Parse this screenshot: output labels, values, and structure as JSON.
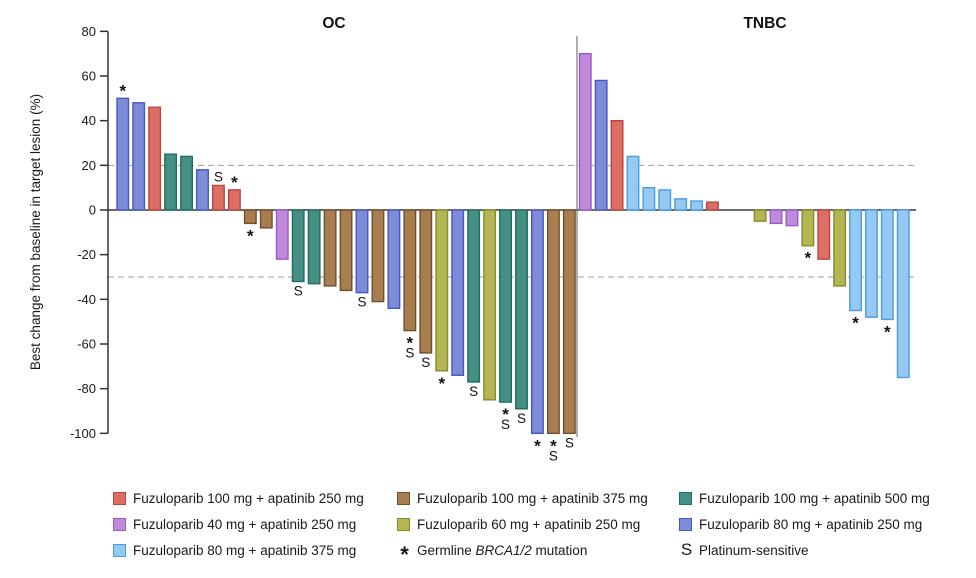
{
  "chart_data": {
    "type": "bar",
    "subtype": "waterfall",
    "ylabel": "Best change from baseline in target lesion (%)",
    "ylim": [
      -100,
      80
    ],
    "yticks": [
      80,
      60,
      40,
      20,
      0,
      -20,
      -40,
      -60,
      -80,
      -100
    ],
    "reference_lines": {
      "upper": 20,
      "lower": -30
    },
    "grid": false,
    "legend_position": "bottom",
    "groups": {
      "f100_250": {
        "label": "Fuzuloparib 100 mg + apatinib 250 mg",
        "fill": "#DC6E66",
        "stroke": "#B8463C"
      },
      "f40_250": {
        "label": "Fuzuloparib 40 mg + apatinib 250 mg",
        "fill": "#C189DC",
        "stroke": "#9B59C6"
      },
      "f80_375": {
        "label": "Fuzuloparib 80 mg + apatinib 375 mg",
        "fill": "#94CAF1",
        "stroke": "#4D9BE0"
      },
      "f100_375": {
        "label": "Fuzuloparib 100 mg + apatinib 375 mg",
        "fill": "#A87E50",
        "stroke": "#70502A"
      },
      "f60_250": {
        "label": "Fuzuloparib 60 mg + apatinib 250 mg",
        "fill": "#B4B553",
        "stroke": "#888A30"
      },
      "f100_500": {
        "label": "Fuzuloparib 100 mg + apatinib 500 mg",
        "fill": "#459084",
        "stroke": "#1F6E60"
      },
      "f80_250": {
        "label": "Fuzuloparib 80 mg + apatinib 250 mg",
        "fill": "#7E8BD6",
        "stroke": "#4457C8"
      }
    },
    "annotations": {
      "brca": {
        "symbol": "*",
        "label_prefix": "Germline ",
        "label_gene": "BRCA1/2",
        "label_suffix": " mutation"
      },
      "plat": {
        "symbol": "S",
        "label": "Platinum-sensitive"
      }
    },
    "legend_columns": [
      [
        "f100_250",
        "f40_250",
        "f80_375"
      ],
      [
        "f100_375",
        "f60_250",
        "sym:brca"
      ],
      [
        "f100_500",
        "f80_250",
        "sym:plat"
      ]
    ],
    "panels": [
      {
        "title": "OC",
        "bars": [
          {
            "g": "f80_250",
            "v": 50,
            "m": [
              "brca"
            ]
          },
          {
            "g": "f80_250",
            "v": 48
          },
          {
            "g": "f100_250",
            "v": 46
          },
          {
            "g": "f100_500",
            "v": 25
          },
          {
            "g": "f100_500",
            "v": 24
          },
          {
            "g": "f80_250",
            "v": 18
          },
          {
            "g": "f100_250",
            "v": 11,
            "m": [
              "plat"
            ]
          },
          {
            "g": "f100_250",
            "v": 9,
            "m": [
              "brca"
            ]
          },
          {
            "g": "f100_375",
            "v": -6,
            "m": [
              "brca"
            ]
          },
          {
            "g": "f100_375",
            "v": -8
          },
          {
            "g": "f40_250",
            "v": -22
          },
          {
            "g": "f100_500",
            "v": -32,
            "m": [
              "plat"
            ]
          },
          {
            "g": "f100_500",
            "v": -33
          },
          {
            "g": "f100_375",
            "v": -34
          },
          {
            "g": "f100_375",
            "v": -36
          },
          {
            "g": "f80_250",
            "v": -37,
            "m": [
              "plat"
            ]
          },
          {
            "g": "f100_375",
            "v": -41
          },
          {
            "g": "f80_250",
            "v": -44
          },
          {
            "g": "f100_375",
            "v": -54,
            "m": [
              "brca",
              "plat"
            ]
          },
          {
            "g": "f100_375",
            "v": -64,
            "m": [
              "plat"
            ]
          },
          {
            "g": "f60_250",
            "v": -72,
            "m": [
              "brca"
            ]
          },
          {
            "g": "f80_250",
            "v": -74
          },
          {
            "g": "f100_500",
            "v": -77,
            "m": [
              "plat"
            ]
          },
          {
            "g": "f60_250",
            "v": -85
          },
          {
            "g": "f100_500",
            "v": -86,
            "m": [
              "brca",
              "plat"
            ]
          },
          {
            "g": "f100_500",
            "v": -89,
            "m": [
              "plat"
            ]
          },
          {
            "g": "f80_250",
            "v": -100,
            "m": [
              "brca"
            ]
          },
          {
            "g": "f100_375",
            "v": -100,
            "m": [
              "brca",
              "plat"
            ]
          },
          {
            "g": "f100_375",
            "v": -100,
            "m": [
              "plat"
            ]
          }
        ]
      },
      {
        "title": "TNBC",
        "bars": [
          {
            "g": "f40_250",
            "v": 70
          },
          {
            "g": "f80_250",
            "v": 58
          },
          {
            "g": "f100_250",
            "v": 40
          },
          {
            "g": "f80_375",
            "v": 24
          },
          {
            "g": "f80_375",
            "v": 10
          },
          {
            "g": "f80_375",
            "v": 9
          },
          {
            "g": "f80_375",
            "v": 5
          },
          {
            "g": "f80_375",
            "v": 4
          },
          {
            "g": "f100_250",
            "v": 3.5
          },
          {
            "g": null,
            "v": 0
          },
          {
            "g": null,
            "v": 0
          },
          {
            "g": "f60_250",
            "v": -5
          },
          {
            "g": "f40_250",
            "v": -6
          },
          {
            "g": "f40_250",
            "v": -7
          },
          {
            "g": "f60_250",
            "v": -16,
            "m": [
              "brca"
            ]
          },
          {
            "g": "f100_250",
            "v": -22
          },
          {
            "g": "f60_250",
            "v": -34
          },
          {
            "g": "f80_375",
            "v": -45,
            "m": [
              "brca"
            ]
          },
          {
            "g": "f80_375",
            "v": -48
          },
          {
            "g": "f80_375",
            "v": -49,
            "m": [
              "brca"
            ]
          },
          {
            "g": "f80_375",
            "v": -75
          }
        ]
      }
    ]
  }
}
